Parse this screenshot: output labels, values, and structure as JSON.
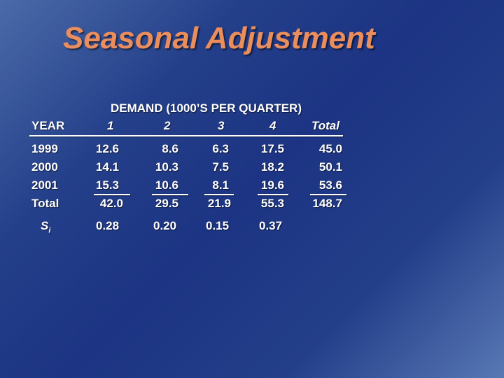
{
  "title": "Seasonal Adjustment",
  "header": {
    "group_label": "DEMAND (1000’S PER QUARTER)",
    "year_label": "YEAR",
    "quarters": [
      "1",
      "2",
      "3",
      "4"
    ],
    "total_label": "Total"
  },
  "rows": [
    {
      "year": "1999",
      "values": [
        "12.6",
        "8.6",
        "6.3",
        "17.5"
      ],
      "total": "45.0"
    },
    {
      "year": "2000",
      "values": [
        "14.1",
        "10.3",
        "7.5",
        "18.2"
      ],
      "total": "50.1"
    },
    {
      "year": "2001",
      "values": [
        "15.3",
        "10.6",
        "8.1",
        "19.6"
      ],
      "total": "53.6"
    }
  ],
  "totals_row": {
    "label": "Total",
    "values": [
      "42.0",
      "29.5",
      "21.9",
      "55.3"
    ],
    "total": "148.7"
  },
  "seasonal_index": {
    "label_main": "S",
    "label_sub": "i",
    "values": [
      "0.28",
      "0.20",
      "0.15",
      "0.37"
    ]
  },
  "colors": {
    "title": "#ec8d5c",
    "text": "#ffffff",
    "background": "#1c3483"
  }
}
